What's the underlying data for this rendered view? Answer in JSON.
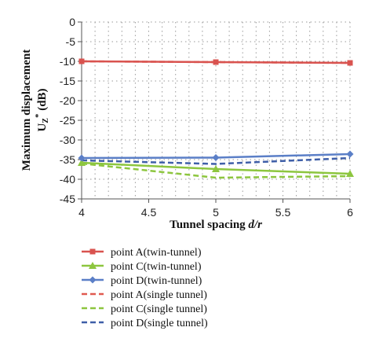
{
  "chart_data": {
    "type": "line",
    "title": "",
    "xlabel": "Tunnel spacing d/r",
    "xlabel_parts": {
      "main": "Tunnel spacing ",
      "italic": "d/r"
    },
    "ylabel": "Maximum displacement U_Z* (dB)",
    "ylabel_parts": {
      "line1": "Maximum displacement",
      "line2_main": "U",
      "line2_sub": "Z",
      "line2_sup": "*",
      "line2_unit": " (dB)"
    },
    "xlim": [
      4,
      6
    ],
    "ylim": [
      -45,
      0
    ],
    "x_ticks": [
      "4",
      "4.5",
      "5",
      "5.5",
      "6"
    ],
    "y_ticks": [
      "0",
      "-5",
      "-10",
      "-15",
      "-20",
      "-25",
      "-30",
      "-35",
      "-40",
      "-45"
    ],
    "grid": true,
    "legend_placement": "bottom",
    "x": [
      4,
      5,
      6
    ],
    "series": [
      {
        "name": "point A(twin-tunnel)",
        "values": [
          -10.0,
          -10.2,
          -10.4
        ],
        "color": "#d9534f",
        "dashed": false,
        "marker": "square"
      },
      {
        "name": "point C(twin-tunnel)",
        "values": [
          -35.8,
          -37.4,
          -38.6
        ],
        "color": "#8dc63f",
        "dashed": false,
        "marker": "triangle"
      },
      {
        "name": "point D(twin-tunnel)",
        "values": [
          -34.6,
          -34.5,
          -33.6
        ],
        "color": "#5b7fc7",
        "dashed": false,
        "marker": "diamond"
      },
      {
        "name": "point A(single tunnel)",
        "values": [
          -10.0,
          -10.2,
          -10.4
        ],
        "color": "#e05a50",
        "dashed": true,
        "marker": "none"
      },
      {
        "name": "point C(single tunnel)",
        "values": [
          -36.0,
          -39.6,
          -39.2
        ],
        "color": "#8dc63f",
        "dashed": true,
        "marker": "none"
      },
      {
        "name": "point D(single tunnel)",
        "values": [
          -35.2,
          -36.1,
          -34.6
        ],
        "color": "#3f5fa8",
        "dashed": true,
        "marker": "none"
      }
    ]
  }
}
